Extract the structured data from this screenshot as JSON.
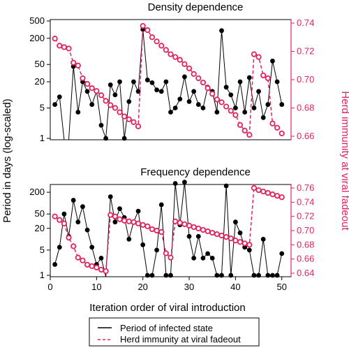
{
  "chart_data": [
    {
      "type": "line",
      "title": "Density dependence",
      "x": [
        1,
        2,
        3,
        4,
        5,
        6,
        7,
        8,
        9,
        10,
        11,
        12,
        13,
        14,
        15,
        16,
        17,
        18,
        19,
        20,
        21,
        22,
        23,
        24,
        25,
        26,
        27,
        28,
        29,
        30,
        31,
        32,
        33,
        34,
        35,
        36,
        37,
        38,
        39,
        40,
        41,
        42,
        43,
        44,
        45,
        46,
        47,
        48,
        49,
        50
      ],
      "series": [
        {
          "name": "Period of infected state",
          "axis": "left",
          "log_scale": true,
          "values": [
            6,
            9,
            0,
            0,
            45,
            4,
            20,
            12,
            6,
            12,
            2,
            1,
            17,
            10,
            20,
            1,
            7,
            20,
            12,
            320,
            22,
            19,
            13,
            12,
            20,
            4,
            5,
            8,
            26,
            7,
            12,
            6,
            5,
            15,
            12,
            4,
            300,
            15,
            10,
            5,
            20,
            4,
            25,
            5,
            12,
            3,
            6,
            60,
            20,
            6
          ]
        },
        {
          "name": "Herd immunity at viral fadeout",
          "axis": "right",
          "values": [
            0.729,
            0.724,
            0.723,
            0.722,
            0.712,
            0.71,
            0.701,
            0.697,
            0.694,
            0.692,
            0.689,
            0.685,
            0.682,
            0.68,
            0.677,
            0.674,
            0.672,
            0.67,
            0.667,
            0.738,
            0.735,
            0.73,
            0.727,
            0.724,
            0.721,
            0.718,
            0.716,
            0.714,
            0.711,
            0.708,
            0.704,
            0.701,
            0.698,
            0.694,
            0.69,
            0.686,
            0.684,
            0.681,
            0.678,
            0.675,
            0.668,
            0.664,
            0.661,
            0.718,
            0.716,
            0.703,
            0.701,
            0.669,
            0.666,
            0.662
          ]
        }
      ],
      "ylim_left_labels": [
        "1",
        "5",
        "20",
        "50",
        "200",
        "500"
      ],
      "ylim_right": [
        0.66,
        0.74
      ]
    },
    {
      "type": "line",
      "title": "Frequency dependence",
      "x": [
        1,
        2,
        3,
        4,
        5,
        6,
        7,
        8,
        9,
        10,
        11,
        12,
        13,
        14,
        15,
        16,
        17,
        18,
        19,
        20,
        21,
        22,
        23,
        24,
        25,
        26,
        27,
        28,
        29,
        30,
        31,
        32,
        33,
        34,
        35,
        36,
        37,
        38,
        39,
        40,
        41,
        42,
        43,
        44,
        45,
        46,
        47,
        48,
        49,
        50
      ],
      "series": [
        {
          "name": "Period of infected state",
          "axis": "left",
          "log_scale": true,
          "values": [
            2,
            6,
            50,
            12,
            120,
            30,
            80,
            18,
            6,
            2,
            3,
            0,
            150,
            30,
            70,
            40,
            10,
            30,
            60,
            7,
            1,
            1,
            5,
            90,
            1,
            1,
            350,
            25,
            380,
            12,
            3,
            12,
            3,
            4,
            3,
            1,
            1,
            300,
            1,
            30,
            15,
            6,
            5,
            1,
            1,
            10,
            1,
            1,
            1,
            4
          ]
        },
        {
          "name": "Herd immunity at viral fadeout",
          "axis": "right",
          "values": [
            0.72,
            0.715,
            0.71,
            0.69,
            0.678,
            0.662,
            0.658,
            0.652,
            0.65,
            0.648,
            0.645,
            0.643,
            0.722,
            0.72,
            0.716,
            0.714,
            0.713,
            0.712,
            0.71,
            0.708,
            0.706,
            0.702,
            0.7,
            0.698,
            0.668,
            0.662,
            0.713,
            0.711,
            0.709,
            0.707,
            0.705,
            0.703,
            0.701,
            0.699,
            0.697,
            0.695,
            0.693,
            0.691,
            0.689,
            0.686,
            0.684,
            0.682,
            0.68,
            0.76,
            0.757,
            0.755,
            0.753,
            0.751,
            0.749,
            0.747
          ]
        }
      ],
      "ylim_left_labels": [
        "1",
        "5",
        "20",
        "50",
        "200"
      ],
      "ylim_right": [
        0.64,
        0.76
      ]
    }
  ],
  "shared": {
    "xlabel": "Iteration order of viral introduction",
    "ylabel_left": "Period in days (log-scaled)",
    "ylabel_right": "Herd immunity at viral fadeout",
    "x_ticks": [
      "0",
      "10",
      "20",
      "30",
      "40",
      "50"
    ],
    "legend": {
      "position": "bottom-center",
      "entries": [
        "Period of infected state",
        "Herd immunity at viral fadeout"
      ]
    },
    "colors": {
      "primary": "#000000",
      "accent": "#e0245e"
    }
  }
}
